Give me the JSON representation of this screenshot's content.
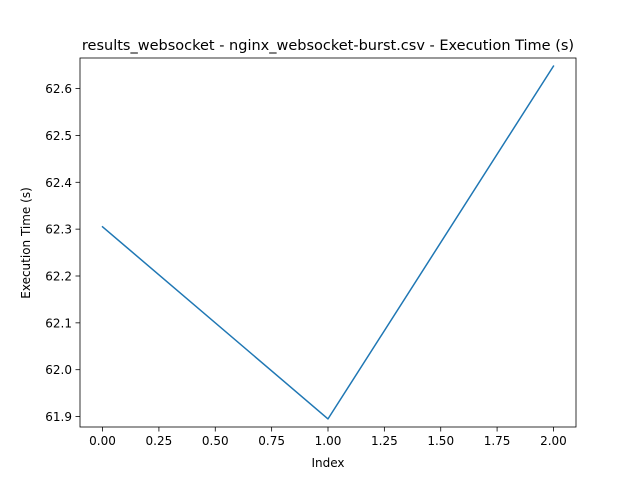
{
  "chart_data": {
    "type": "line",
    "title": "results_websocket - nginx_websocket-burst.csv - Execution Time (s)",
    "xlabel": "Index",
    "ylabel": "Execution Time (s)",
    "x": [
      0,
      1,
      2
    ],
    "series": [
      {
        "values": [
          62.305,
          61.895,
          62.648
        ],
        "color": "#1f77b4"
      }
    ],
    "xlim": [
      -0.1,
      2.1
    ],
    "ylim": [
      61.8777,
      62.6653
    ],
    "xticks": [
      0.0,
      0.25,
      0.5,
      0.75,
      1.0,
      1.25,
      1.5,
      1.75,
      2.0
    ],
    "xtick_labels": [
      "0.00",
      "0.25",
      "0.50",
      "0.75",
      "1.00",
      "1.25",
      "1.50",
      "1.75",
      "2.00"
    ],
    "yticks": [
      61.9,
      62.0,
      62.1,
      62.2,
      62.3,
      62.4,
      62.5,
      62.6
    ],
    "ytick_labels": [
      "61.9",
      "62.0",
      "62.1",
      "62.2",
      "62.3",
      "62.4",
      "62.5",
      "62.6"
    ],
    "grid": false,
    "legend": "none"
  }
}
